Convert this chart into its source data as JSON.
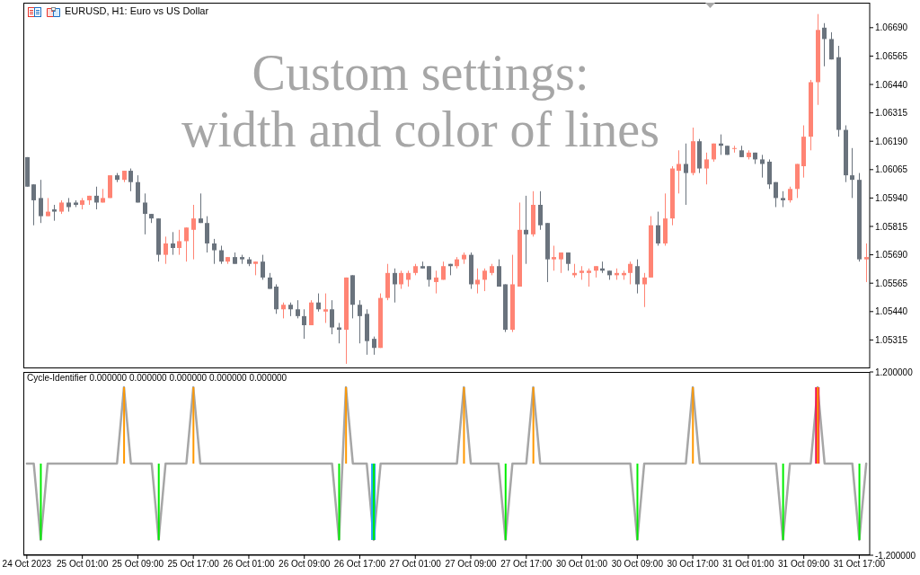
{
  "chart_data": [
    {
      "type": "candlestick",
      "title": "EURUSD, H1: Euro vs US Dollar",
      "annotations": [
        "Custom settings:",
        "width and color of lines"
      ],
      "categories": [
        null,
        null,
        null,
        null,
        null,
        null,
        null,
        null,
        null,
        null,
        null,
        null,
        null,
        null,
        null,
        null,
        null,
        null,
        null,
        null,
        null,
        null,
        null,
        null,
        null,
        null,
        null,
        null,
        null,
        null,
        null,
        null,
        null,
        null,
        null,
        null,
        null,
        null,
        null,
        null,
        null,
        null,
        null,
        null,
        null,
        null,
        null,
        null,
        null,
        null,
        null,
        null,
        null,
        null,
        null,
        null,
        null,
        null,
        null,
        null,
        null,
        null,
        null,
        null,
        null,
        null,
        null,
        null,
        null,
        null,
        null,
        null,
        null,
        null,
        null,
        null,
        null,
        null,
        null,
        null,
        null,
        null,
        null,
        null,
        null,
        null,
        null,
        null,
        null,
        null,
        null,
        null,
        null,
        null,
        null,
        null,
        null,
        null,
        null,
        null,
        null,
        null,
        null,
        null,
        null,
        null,
        null,
        null,
        null,
        null,
        null,
        null,
        null,
        null,
        null,
        null,
        null,
        null,
        null,
        null,
        null,
        null
      ],
      "ohlc": [
        [
          1.0612,
          1.0612,
          1.0599,
          1.0599
        ],
        [
          1.06,
          1.06,
          1.0582,
          1.0593
        ],
        [
          1.0594,
          1.0602,
          1.0583,
          1.0586
        ],
        [
          1.0586,
          1.0594,
          1.0586,
          1.0588
        ],
        [
          1.0589,
          1.0591,
          1.0584,
          1.0588
        ],
        [
          1.0588,
          1.0593,
          1.0587,
          1.0592
        ],
        [
          1.0592,
          1.0594,
          1.0588,
          1.059
        ],
        [
          1.0592,
          1.0593,
          1.059,
          1.0591
        ],
        [
          1.0591,
          1.0594,
          1.0589,
          1.0593
        ],
        [
          1.0593,
          1.0595,
          1.0591,
          1.0595
        ],
        [
          1.0595,
          1.0599,
          1.0589,
          1.0592
        ],
        [
          1.0592,
          1.0598,
          1.0592,
          1.0594
        ],
        [
          1.0594,
          1.0604,
          1.0594,
          1.0604
        ],
        [
          1.0604,
          1.0605,
          1.0601,
          1.0602
        ],
        [
          1.0602,
          1.0606,
          1.0601,
          1.0606
        ],
        [
          1.0606,
          1.0607,
          1.0597,
          1.0601
        ],
        [
          1.0601,
          1.0604,
          1.0592,
          1.0592
        ],
        [
          1.0592,
          1.0596,
          1.0578,
          1.0587
        ],
        [
          1.0587,
          1.0587,
          1.0583,
          1.0585
        ],
        [
          1.0585,
          1.0585,
          1.0566,
          1.0569
        ],
        [
          1.0569,
          1.0577,
          1.0565,
          1.0574
        ],
        [
          1.0574,
          1.0579,
          1.0569,
          1.0572
        ],
        [
          1.0572,
          1.058,
          1.0569,
          1.0575
        ],
        [
          1.0575,
          1.0581,
          1.0566,
          1.0581
        ],
        [
          1.058,
          1.0591,
          1.0567,
          1.0585
        ],
        [
          1.0585,
          1.0596,
          1.0583,
          1.0583
        ],
        [
          1.0583,
          1.0586,
          1.057,
          1.0574
        ],
        [
          1.0574,
          1.0576,
          1.0565,
          1.0571
        ],
        [
          1.0571,
          1.0573,
          1.0565,
          1.0566
        ],
        [
          1.0566,
          1.0568,
          1.0565,
          1.0568
        ],
        [
          1.0568,
          1.057,
          1.0565,
          1.0565
        ],
        [
          1.0568,
          1.0569,
          1.0565,
          1.0567
        ],
        [
          1.0567,
          1.0568,
          1.0564,
          1.0565
        ],
        [
          1.0565,
          1.0566,
          1.056,
          1.0566
        ],
        [
          1.0566,
          1.0569,
          1.0558,
          1.0559
        ],
        [
          1.0559,
          1.0561,
          1.0554,
          1.0554
        ],
        [
          1.0555,
          1.0556,
          1.0543,
          1.0545
        ],
        [
          1.0545,
          1.0548,
          1.0541,
          1.0547
        ],
        [
          1.0547,
          1.0548,
          1.0542,
          1.0545
        ],
        [
          1.0545,
          1.0549,
          1.0541,
          1.0542
        ],
        [
          1.0542,
          1.0545,
          1.0532,
          1.0538
        ],
        [
          1.0538,
          1.0549,
          1.0538,
          1.0548
        ],
        [
          1.0548,
          1.0552,
          1.0544,
          1.0545
        ],
        [
          1.0544,
          1.0552,
          1.0539,
          1.0545
        ],
        [
          1.0545,
          1.0549,
          1.0534,
          1.0537
        ],
        [
          1.0537,
          1.0539,
          1.053,
          1.0536
        ],
        [
          1.0536,
          1.0559,
          1.0521,
          1.0559
        ],
        [
          1.056,
          1.056,
          1.0541,
          1.0547
        ],
        [
          1.0547,
          1.0549,
          1.053,
          1.0542
        ],
        [
          1.0543,
          1.0545,
          1.0525,
          1.0531
        ],
        [
          1.0532,
          1.0533,
          1.0525,
          1.0528
        ],
        [
          1.0528,
          1.0552,
          1.0528,
          1.055
        ],
        [
          1.055,
          1.0565,
          1.0549,
          1.0561
        ],
        [
          1.0561,
          1.0563,
          1.0548,
          1.0556
        ],
        [
          1.0556,
          1.0562,
          1.0554,
          1.0561
        ],
        [
          1.0558,
          1.0562,
          1.0555,
          1.0561
        ],
        [
          1.0561,
          1.0565,
          1.056,
          1.0564
        ],
        [
          1.0564,
          1.0566,
          1.0563,
          1.0563
        ],
        [
          1.0564,
          1.0564,
          1.0555,
          1.0558
        ],
        [
          1.0557,
          1.0562,
          1.0552,
          1.0559
        ],
        [
          1.0558,
          1.0566,
          1.0558,
          1.0564
        ],
        [
          1.0565,
          1.0565,
          1.056,
          1.0564
        ],
        [
          1.0564,
          1.0568,
          1.0563,
          1.0567
        ],
        [
          1.0567,
          1.057,
          1.0565,
          1.0569
        ],
        [
          1.0569,
          1.057,
          1.0554,
          1.0556
        ],
        [
          1.0556,
          1.0563,
          1.0552,
          1.0558
        ],
        [
          1.0558,
          1.0563,
          1.0553,
          1.0562
        ],
        [
          1.0561,
          1.0565,
          1.056,
          1.0564
        ],
        [
          1.0564,
          1.0567,
          1.0555,
          1.0555
        ],
        [
          1.0556,
          1.0556,
          1.0535,
          1.0536
        ],
        [
          1.0536,
          1.0569,
          1.0535,
          1.0556
        ],
        [
          1.0555,
          1.0592,
          1.0555,
          1.058
        ],
        [
          1.058,
          1.0595,
          1.0565,
          1.0578
        ],
        [
          1.0578,
          1.0597,
          1.0577,
          1.0591
        ],
        [
          1.0591,
          1.0597,
          1.058,
          1.0582
        ],
        [
          1.0583,
          1.0583,
          1.0557,
          1.0567
        ],
        [
          1.0567,
          1.0573,
          1.0562,
          1.0568
        ],
        [
          1.0567,
          1.057,
          1.0561,
          1.057
        ],
        [
          1.057,
          1.057,
          1.0562,
          1.0565
        ],
        [
          1.056,
          1.0565,
          1.0559,
          1.0561
        ],
        [
          1.0561,
          1.0564,
          1.0558,
          1.0562
        ],
        [
          1.0561,
          1.0563,
          1.0555,
          1.0562
        ],
        [
          1.0562,
          1.0564,
          1.0559,
          1.0564
        ],
        [
          1.0563,
          1.0566,
          1.0561,
          1.0562
        ],
        [
          1.0562,
          1.0562,
          1.0558,
          1.056
        ],
        [
          1.056,
          1.0563,
          1.0558,
          1.0561
        ],
        [
          1.056,
          1.0562,
          1.0558,
          1.0561
        ],
        [
          1.0561,
          1.0566,
          1.0556,
          1.0565
        ],
        [
          1.0564,
          1.0567,
          1.0552,
          1.0556
        ],
        [
          1.0556,
          1.0561,
          1.0546,
          1.0559
        ],
        [
          1.0559,
          1.0586,
          1.0559,
          1.0582
        ],
        [
          1.0582,
          1.0588,
          1.0573,
          1.0574
        ],
        [
          1.0574,
          1.0596,
          1.0573,
          1.0585
        ],
        [
          1.0585,
          1.0608,
          1.0582,
          1.0607
        ],
        [
          1.0606,
          1.0615,
          1.0596,
          1.0609
        ],
        [
          1.0609,
          1.0618,
          1.0591,
          1.0605
        ],
        [
          1.0605,
          1.0625,
          1.0604,
          1.0619
        ],
        [
          1.0619,
          1.062,
          1.0605,
          1.0607
        ],
        [
          1.0607,
          1.0614,
          1.06,
          1.0611
        ],
        [
          1.0611,
          1.0618,
          1.061,
          1.0618
        ],
        [
          1.0618,
          1.0622,
          1.0613,
          1.0617
        ],
        [
          1.0617,
          1.0617,
          1.0613,
          1.0613
        ],
        [
          1.0616,
          1.0617,
          1.0614,
          1.0616
        ],
        [
          1.0615,
          1.0617,
          1.0612,
          1.0612
        ],
        [
          1.0612,
          1.0615,
          1.0611,
          1.0614
        ],
        [
          1.0614,
          1.0614,
          1.0609,
          1.0611
        ],
        [
          1.0611,
          1.0613,
          1.0603,
          1.0609
        ],
        [
          1.061,
          1.0611,
          1.0598,
          1.06
        ],
        [
          1.0601,
          1.0601,
          1.059,
          1.0594
        ],
        [
          1.0594,
          1.0597,
          1.059,
          1.0593
        ],
        [
          1.0593,
          1.0599,
          1.0592,
          1.0598
        ],
        [
          1.0598,
          1.0609,
          1.0594,
          1.0609
        ],
        [
          1.0608,
          1.0626,
          1.0603,
          1.0621
        ],
        [
          1.0621,
          1.0646,
          1.0615,
          1.0645
        ],
        [
          1.0645,
          1.0675,
          1.0635,
          1.0668
        ],
        [
          1.0669,
          1.0671,
          1.0652,
          1.0664
        ],
        [
          1.0664,
          1.0667,
          1.0655,
          1.0655
        ],
        [
          1.0656,
          1.0661,
          1.0621,
          1.0624
        ],
        [
          1.0624,
          1.0626,
          1.0601,
          1.0604
        ],
        [
          1.0604,
          1.0616,
          1.0594,
          1.0602
        ],
        [
          1.0602,
          1.0605,
          1.0566,
          1.0567
        ],
        [
          1.0567,
          1.0574,
          1.0557,
          1.0568
        ]
      ],
      "colors": [
        "#6a737d",
        "#6a737d",
        "#6a737d",
        "#ff8474",
        "#6a737d",
        "#ff8474",
        "#6a737d",
        "#6a737d",
        "#ff8474",
        "#ff8474",
        "#6a737d",
        "#ff8474",
        "#ff8474",
        "#6a737d",
        "#ff8474",
        "#6a737d",
        "#6a737d",
        "#6a737d",
        "#6a737d",
        "#6a737d",
        "#ff8474",
        "#6a737d",
        "#ff8474",
        "#ff8474",
        "#ff8474",
        "#6a737d",
        "#6a737d",
        "#6a737d",
        "#6a737d",
        "#ff8474",
        "#6a737d",
        "#6a737d",
        "#6a737d",
        "#ff8474",
        "#6a737d",
        "#6a737d",
        "#6a737d",
        "#ff8474",
        "#6a737d",
        "#6a737d",
        "#6a737d",
        "#ff8474",
        "#6a737d",
        "#ff8474",
        "#6a737d",
        "#6a737d",
        "#ff8474",
        "#6a737d",
        "#6a737d",
        "#6a737d",
        "#6a737d",
        "#ff8474",
        "#ff8474",
        "#6a737d",
        "#ff8474",
        "#ff8474",
        "#ff8474",
        "#6a737d",
        "#6a737d",
        "#ff8474",
        "#ff8474",
        "#6a737d",
        "#ff8474",
        "#ff8474",
        "#6a737d",
        "#ff8474",
        "#ff8474",
        "#ff8474",
        "#6a737d",
        "#6a737d",
        "#ff8474",
        "#ff8474",
        "#6a737d",
        "#ff8474",
        "#6a737d",
        "#6a737d",
        "#ff8474",
        "#ff8474",
        "#6a737d",
        "#ff8474",
        "#ff8474",
        "#ff8474",
        "#ff8474",
        "#6a737d",
        "#6a737d",
        "#ff8474",
        "#ff8474",
        "#ff8474",
        "#6a737d",
        "#ff8474",
        "#ff8474",
        "#6a737d",
        "#ff8474",
        "#ff8474",
        "#ff8474",
        "#6a737d",
        "#ff8474",
        "#6a737d",
        "#ff8474",
        "#ff8474",
        "#6a737d",
        "#6a737d",
        "#ff8474",
        "#6a737d",
        "#ff8474",
        "#6a737d",
        "#6a737d",
        "#6a737d",
        "#6a737d",
        "#6a737d",
        "#ff8474",
        "#ff8474",
        "#ff8474",
        "#ff8474",
        "#ff8474",
        "#6a737d",
        "#6a737d",
        "#6a737d",
        "#6a737d",
        "#6a737d",
        "#6a737d",
        "#ff8474"
      ],
      "ylim": [
        1.0519,
        1.068
      ],
      "yticks": [
        {
          "value": 1.0669,
          "label": "1.06690"
        },
        1.06565,
        {
          "value": 1.0644,
          "label": "1.06440"
        },
        1.06315,
        {
          "value": 1.0619,
          "label": "1.06190"
        },
        1.06065,
        {
          "value": 1.0594,
          "label": "1.05940"
        },
        1.05815,
        {
          "value": 1.0569,
          "label": "1.05690"
        },
        1.05565,
        {
          "value": 1.0544,
          "label": "1.05440"
        },
        1.05315
      ],
      "tick_labels": "y"
    },
    {
      "type": "line",
      "title": "Cycle-Identifier 0.000000 0.000000 0.000000 0.000000 0.000000",
      "categories": [
        "24 Oct 2023",
        null,
        null,
        null,
        null,
        null,
        null,
        null,
        "25 Oct 01:00",
        null,
        null,
        null,
        null,
        null,
        null,
        null,
        "25 Oct 09:00",
        null,
        null,
        null,
        null,
        null,
        null,
        null,
        "25 Oct 17:00",
        null,
        null,
        null,
        null,
        null,
        null,
        null,
        "26 Oct 01:00",
        null,
        null,
        null,
        null,
        null,
        null,
        null,
        "26 Oct 09:00",
        null,
        null,
        null,
        null,
        null,
        null,
        null,
        "26 Oct 17:00",
        null,
        null,
        null,
        null,
        null,
        null,
        null,
        "27 Oct 01:00",
        null,
        null,
        null,
        null,
        null,
        null,
        null,
        "27 Oct 09:00",
        null,
        null,
        null,
        null,
        null,
        null,
        null,
        "27 Oct 17:00",
        null,
        null,
        null,
        null,
        null,
        null,
        null,
        "30 Oct 01:00",
        null,
        null,
        null,
        null,
        null,
        null,
        null,
        "30 Oct 09:00",
        null,
        null,
        null,
        null,
        null,
        null,
        null,
        "30 Oct 17:00",
        null,
        null,
        null,
        null,
        null,
        null,
        null,
        "31 Oct 01:00",
        null,
        null,
        null,
        null,
        null,
        null,
        null,
        "31 Oct 09:00",
        null,
        null,
        null,
        null,
        null,
        null,
        null,
        "31 Oct 17:00",
        null
      ],
      "series": [
        {
          "color": "#a6a6a6",
          "values": [
            0,
            0,
            -1,
            0,
            0,
            0,
            0,
            0,
            0,
            0,
            0,
            0,
            0,
            0,
            1,
            0,
            0,
            0,
            0,
            -1,
            0,
            0,
            0,
            0,
            1,
            0,
            0,
            0,
            0,
            0,
            0,
            0,
            0,
            0,
            0,
            0,
            0,
            0,
            0,
            0,
            0,
            0,
            0,
            0,
            0,
            -1,
            1,
            0,
            0,
            0,
            -1,
            0,
            0,
            0,
            0,
            0,
            0,
            0,
            0,
            0,
            0,
            0,
            0,
            1,
            0,
            0,
            0,
            0,
            0,
            -1,
            0,
            0,
            0,
            1,
            0,
            0,
            0,
            0,
            0,
            0,
            0,
            0,
            0,
            0,
            0,
            0,
            0,
            0,
            -1,
            0,
            0,
            0,
            0,
            0,
            0,
            0,
            1,
            0,
            0,
            0,
            0,
            0,
            0,
            0,
            0,
            0,
            0,
            0,
            0,
            -1,
            0,
            0,
            0,
            0,
            1,
            0,
            0,
            0,
            0,
            0,
            -1,
            0
          ]
        },
        {
          "type": "bar",
          "color": "#1eaaf1",
          "values": [
            null,
            null,
            null,
            null,
            null,
            null,
            null,
            null,
            null,
            null,
            null,
            null,
            null,
            null,
            null,
            null,
            null,
            null,
            null,
            null,
            null,
            null,
            null,
            null,
            null,
            null,
            null,
            null,
            null,
            null,
            null,
            null,
            null,
            null,
            null,
            null,
            null,
            null,
            null,
            null,
            null,
            null,
            null,
            null,
            null,
            null,
            null,
            null,
            null,
            null,
            -1,
            null,
            null,
            null,
            null,
            null,
            null,
            null,
            null,
            null,
            null,
            null,
            null,
            null,
            null,
            null,
            null,
            null,
            null,
            null,
            null,
            null,
            null,
            null,
            null,
            null,
            null,
            null,
            null,
            null,
            null,
            null,
            null,
            null,
            null,
            null,
            null,
            null,
            null,
            null,
            null,
            null,
            null,
            null,
            null,
            null,
            null,
            null,
            null,
            null,
            null,
            null,
            null,
            null,
            null,
            null,
            null,
            null,
            null,
            null,
            null,
            null,
            null,
            null,
            null,
            null,
            null,
            null,
            null,
            null,
            null,
            null
          ]
        },
        {
          "type": "bar",
          "color": "#f0145a",
          "values": [
            null,
            null,
            null,
            null,
            null,
            null,
            null,
            null,
            null,
            null,
            null,
            null,
            null,
            null,
            null,
            null,
            null,
            null,
            null,
            null,
            null,
            null,
            null,
            null,
            null,
            null,
            null,
            null,
            null,
            null,
            null,
            null,
            null,
            null,
            null,
            null,
            null,
            null,
            null,
            null,
            null,
            null,
            null,
            null,
            null,
            null,
            null,
            null,
            null,
            null,
            null,
            null,
            null,
            null,
            null,
            null,
            null,
            null,
            null,
            null,
            null,
            null,
            null,
            null,
            null,
            null,
            null,
            null,
            null,
            null,
            null,
            null,
            null,
            null,
            null,
            null,
            null,
            null,
            null,
            null,
            null,
            null,
            null,
            null,
            null,
            null,
            null,
            null,
            null,
            null,
            null,
            null,
            null,
            null,
            null,
            null,
            null,
            null,
            null,
            null,
            null,
            null,
            null,
            null,
            null,
            null,
            null,
            null,
            null,
            null,
            null,
            null,
            null,
            null,
            1,
            null,
            null,
            null,
            null,
            null,
            null,
            null
          ]
        },
        {
          "type": "bar",
          "color": "#00ee00",
          "values": [
            null,
            null,
            -1,
            null,
            null,
            null,
            null,
            null,
            null,
            null,
            null,
            null,
            null,
            null,
            null,
            null,
            null,
            null,
            null,
            -1,
            null,
            null,
            null,
            null,
            null,
            null,
            null,
            null,
            null,
            null,
            null,
            null,
            null,
            null,
            null,
            null,
            null,
            null,
            null,
            null,
            null,
            null,
            null,
            null,
            null,
            -1,
            null,
            null,
            null,
            null,
            -1,
            null,
            null,
            null,
            null,
            null,
            null,
            null,
            null,
            null,
            null,
            null,
            null,
            null,
            null,
            null,
            null,
            null,
            null,
            -1,
            null,
            null,
            null,
            null,
            null,
            null,
            null,
            null,
            null,
            null,
            null,
            null,
            null,
            null,
            null,
            null,
            null,
            null,
            -1,
            null,
            null,
            null,
            null,
            null,
            null,
            null,
            null,
            null,
            null,
            null,
            null,
            null,
            null,
            null,
            null,
            null,
            null,
            null,
            null,
            -1,
            null,
            null,
            null,
            null,
            null,
            null,
            null,
            null,
            null,
            null,
            -1,
            null
          ]
        },
        {
          "type": "bar",
          "color": "#ff9800",
          "values": [
            null,
            null,
            null,
            null,
            null,
            null,
            null,
            null,
            null,
            null,
            null,
            null,
            null,
            null,
            1,
            null,
            null,
            null,
            null,
            null,
            null,
            null,
            null,
            null,
            1,
            null,
            null,
            null,
            null,
            null,
            null,
            null,
            null,
            null,
            null,
            null,
            null,
            null,
            null,
            null,
            null,
            null,
            null,
            null,
            null,
            null,
            1,
            null,
            null,
            null,
            null,
            null,
            null,
            null,
            null,
            null,
            null,
            null,
            null,
            null,
            null,
            null,
            null,
            1,
            null,
            null,
            null,
            null,
            null,
            null,
            null,
            null,
            null,
            1,
            null,
            null,
            null,
            null,
            null,
            null,
            null,
            null,
            null,
            null,
            null,
            null,
            null,
            null,
            null,
            null,
            null,
            null,
            null,
            null,
            null,
            null,
            1,
            null,
            null,
            null,
            null,
            null,
            null,
            null,
            null,
            null,
            null,
            null,
            null,
            null,
            null,
            null,
            null,
            null,
            1,
            null,
            null,
            null,
            null,
            null,
            null,
            null
          ]
        }
      ],
      "ylim": [
        -1.2,
        1.2
      ],
      "yticks": [
        {
          "value": 1.2,
          "label": "1.200000"
        },
        {
          "value": -1.2,
          "label": "-1.200000"
        }
      ]
    }
  ]
}
